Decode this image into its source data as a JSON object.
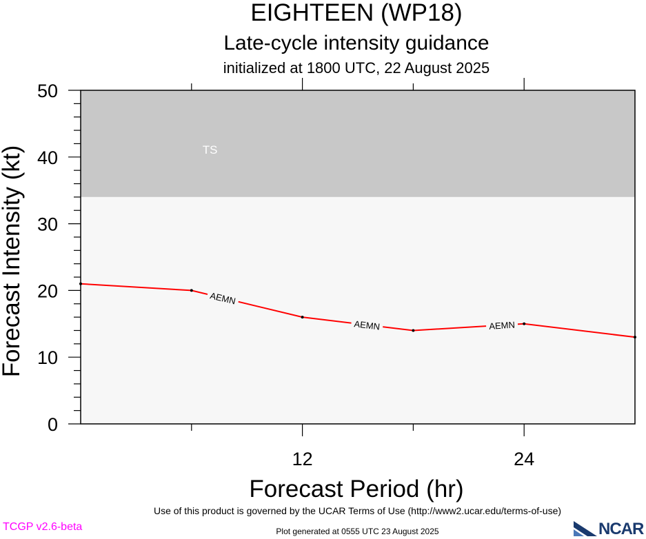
{
  "chart_data": {
    "type": "line",
    "title": "EIGHTEEN (WP18)",
    "subtitle": "Late-cycle intensity guidance",
    "subtitle2": "initialized at 1800 UTC, 22 August 2025",
    "xlabel": "Forecast Period (hr)",
    "ylabel": "Forecast Intensity (kt)",
    "xlim": [
      0,
      30
    ],
    "ylim": [
      0,
      50
    ],
    "xticks": [
      12,
      24
    ],
    "yticks": [
      0,
      10,
      20,
      30,
      40,
      50
    ],
    "bands": [
      {
        "label": "TS",
        "from": 34,
        "to": 50,
        "color": "#c8c8c8"
      },
      {
        "label": "",
        "from": 0,
        "to": 34,
        "color": "#f7f7f7"
      }
    ],
    "series": [
      {
        "name": "AEMN",
        "color": "#ff0000",
        "x": [
          0,
          6,
          12,
          18,
          24,
          30
        ],
        "y": [
          21,
          20,
          16,
          14,
          15,
          13
        ],
        "label_positions": [
          7.7,
          15.5,
          22.8
        ]
      }
    ]
  },
  "footer": {
    "terms": "Use of this product is governed by the UCAR Terms of Use (http://www2.ucar.edu/terms-of-use)",
    "version": "TCGP v2.6-beta",
    "generated": "Plot generated at 0555 UTC   23 August 2025",
    "logo": "NCAR"
  }
}
